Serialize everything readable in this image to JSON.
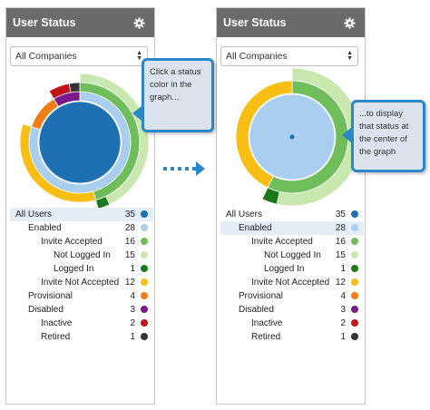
{
  "panels": [
    {
      "title": "User Status",
      "selector": {
        "selected": "All Companies"
      },
      "highlighted_item": "All Users"
    },
    {
      "title": "User Status",
      "selector": {
        "selected": "All Companies"
      },
      "highlighted_item": "Enabled"
    }
  ],
  "legend": [
    {
      "label": "All Users",
      "count": "35",
      "color": "#1f6fb3"
    },
    {
      "label": "Enabled",
      "count": "28",
      "color": "#a9cef0"
    },
    {
      "label": "Invite Accepted",
      "count": "16",
      "color": "#6fbe5b"
    },
    {
      "label": "Not Logged In",
      "count": "15",
      "color": "#c8e8b0"
    },
    {
      "label": "Logged In",
      "count": "1",
      "color": "#1a7a1a"
    },
    {
      "label": "Invite Not Accepted",
      "count": "12",
      "color": "#f7be14"
    },
    {
      "label": "Provisional",
      "count": "4",
      "color": "#f07d15"
    },
    {
      "label": "Disabled",
      "count": "3",
      "color": "#7a1a8a"
    },
    {
      "label": "Inactive",
      "count": "2",
      "color": "#c0141a"
    },
    {
      "label": "Retired",
      "count": "1",
      "color": "#333333"
    }
  ],
  "callouts": {
    "left": [
      "Click a status",
      "color in the",
      "graph..."
    ],
    "right": [
      "...to display",
      "that status at",
      "the center of",
      "the graph"
    ]
  },
  "icons": {
    "gear": "gear-icon",
    "select_arrows": "updown-arrows-icon",
    "transition_arrow": "dotted-right-arrow-icon"
  }
}
